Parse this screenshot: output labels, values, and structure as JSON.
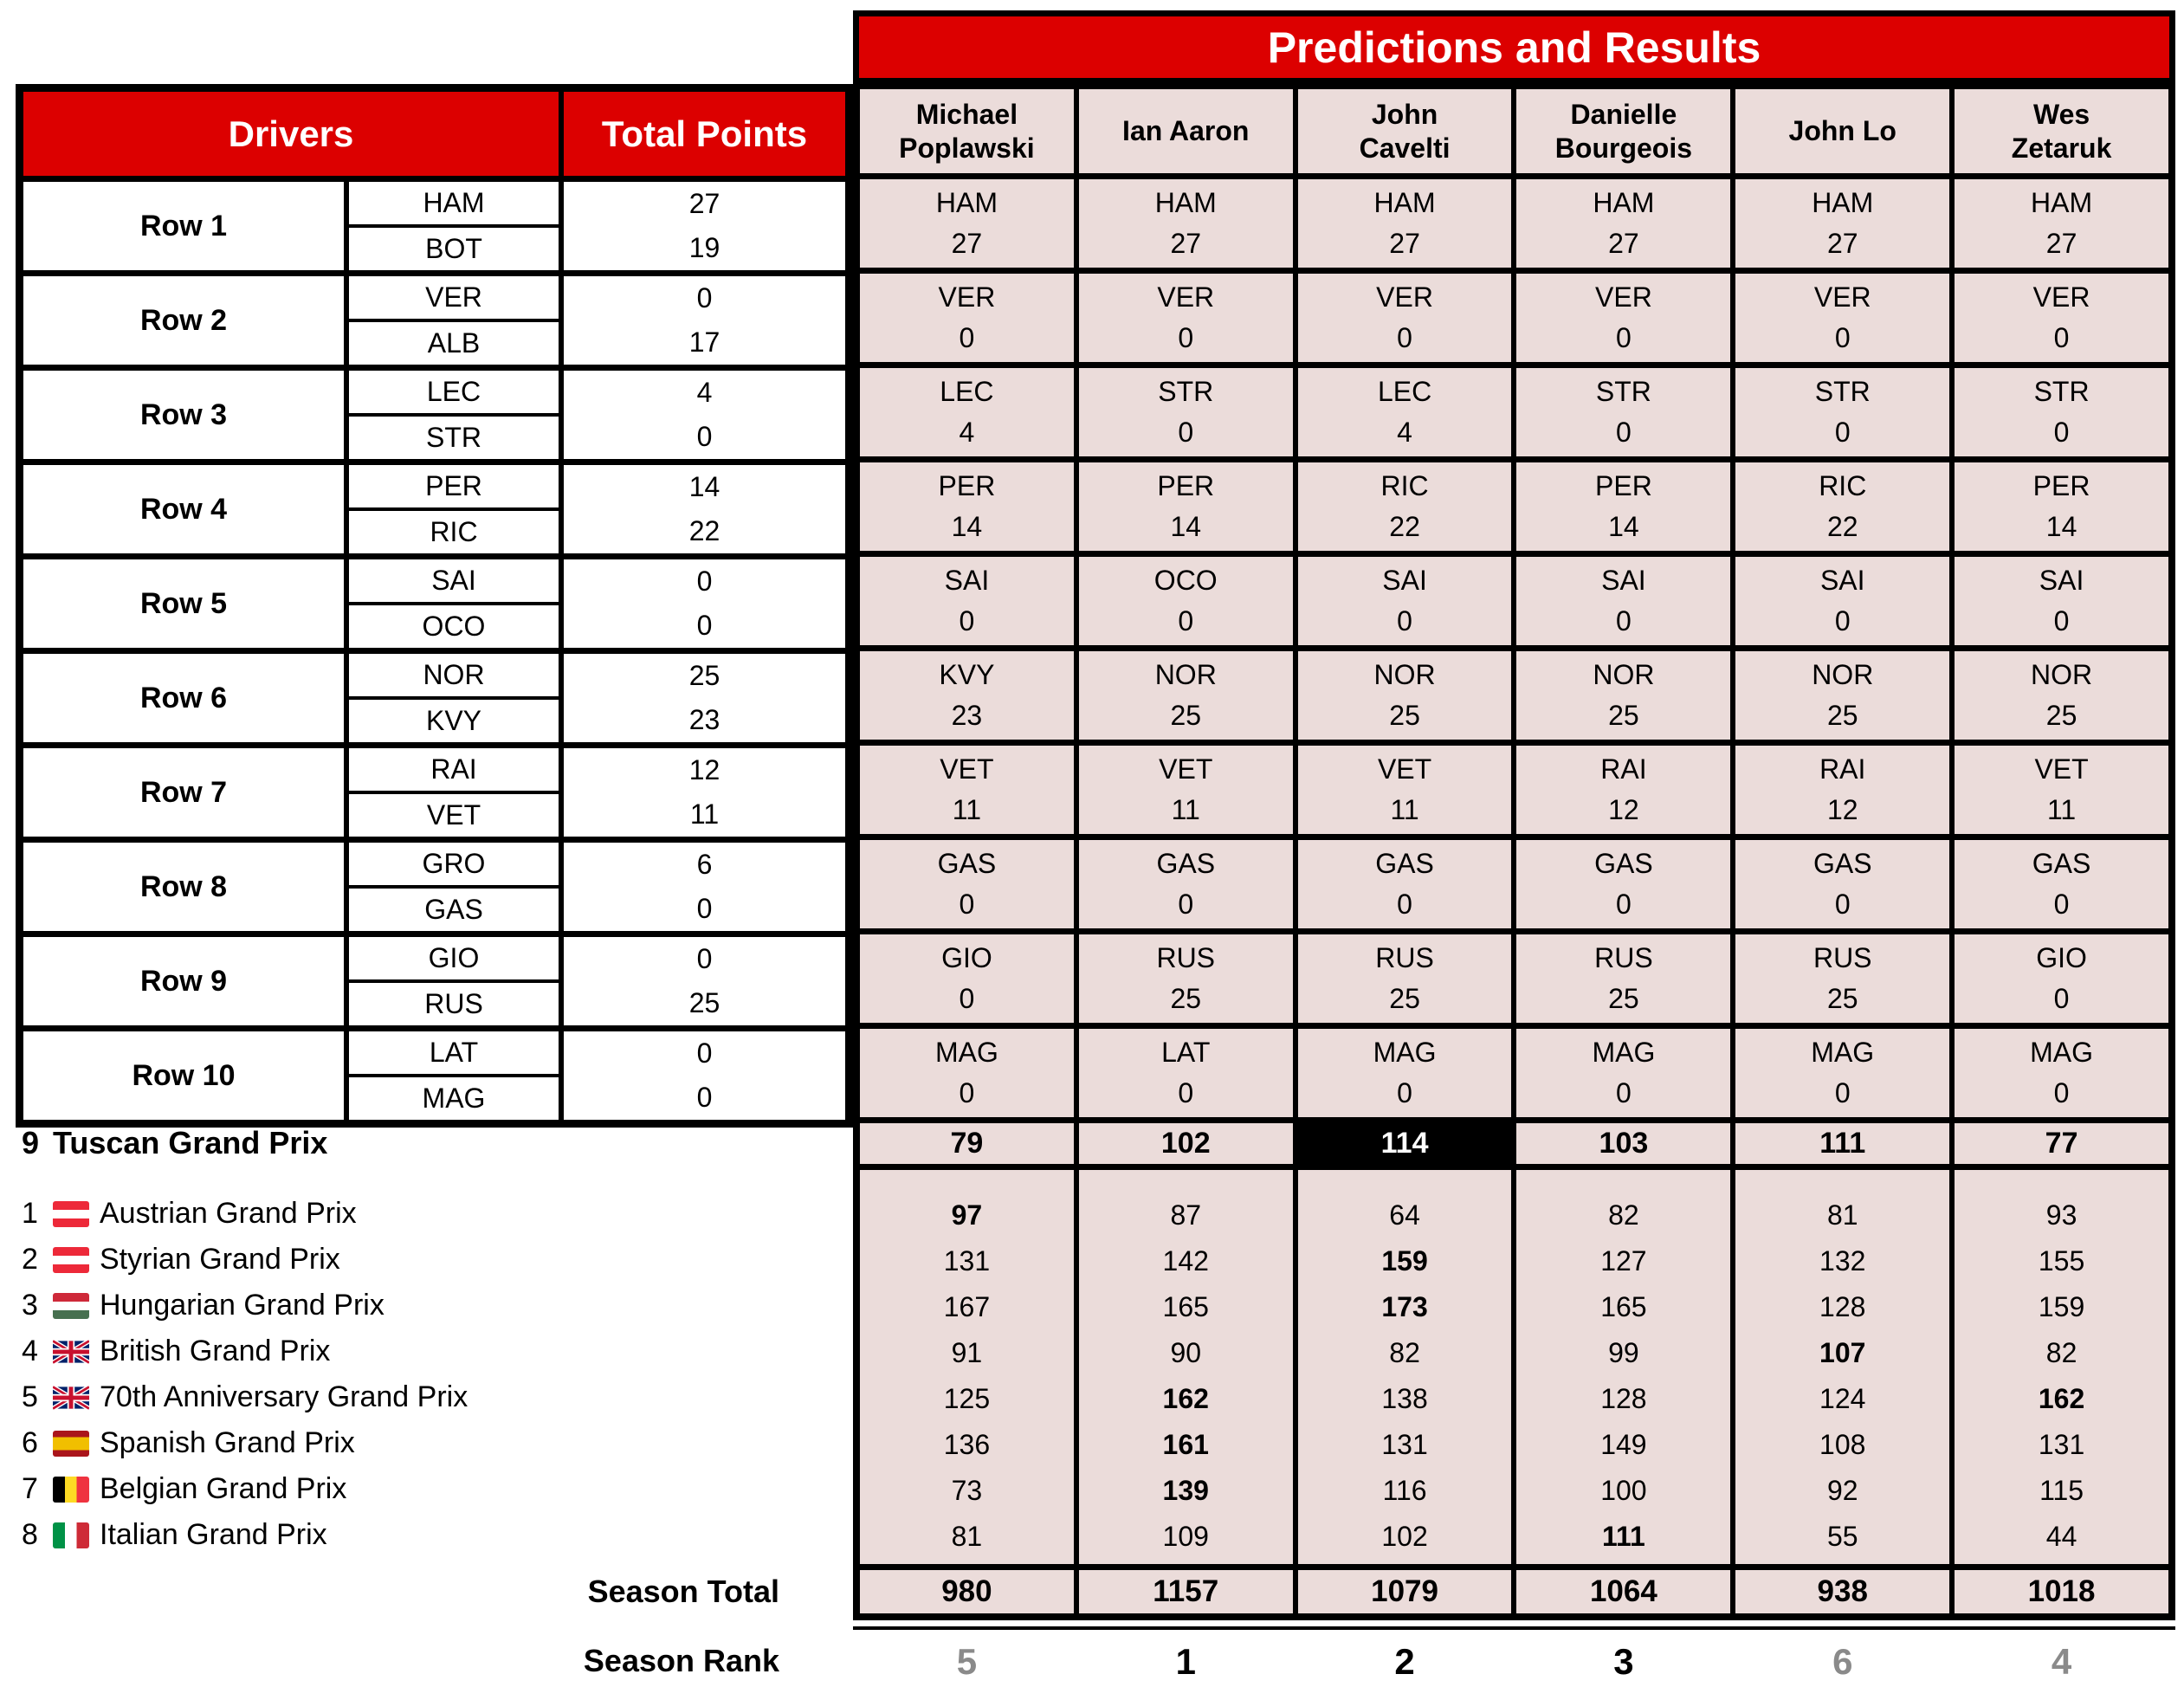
{
  "title": "Predictions and Results",
  "left_table": {
    "drivers_header": "Drivers",
    "total_points_header": "Total Points",
    "rows": [
      {
        "label": "Row 1",
        "drivers": [
          "HAM",
          "BOT"
        ],
        "points": [
          "27",
          "19"
        ]
      },
      {
        "label": "Row 2",
        "drivers": [
          "VER",
          "ALB"
        ],
        "points": [
          "0",
          "17"
        ]
      },
      {
        "label": "Row 3",
        "drivers": [
          "LEC",
          "STR"
        ],
        "points": [
          "4",
          "0"
        ]
      },
      {
        "label": "Row 4",
        "drivers": [
          "PER",
          "RIC"
        ],
        "points": [
          "14",
          "22"
        ]
      },
      {
        "label": "Row 5",
        "drivers": [
          "SAI",
          "OCO"
        ],
        "points": [
          "0",
          "0"
        ]
      },
      {
        "label": "Row 6",
        "drivers": [
          "NOR",
          "KVY"
        ],
        "points": [
          "25",
          "23"
        ]
      },
      {
        "label": "Row 7",
        "drivers": [
          "RAI",
          "VET"
        ],
        "points": [
          "12",
          "11"
        ]
      },
      {
        "label": "Row 8",
        "drivers": [
          "GRO",
          "GAS"
        ],
        "points": [
          "6",
          "0"
        ]
      },
      {
        "label": "Row 9",
        "drivers": [
          "GIO",
          "RUS"
        ],
        "points": [
          "0",
          "25"
        ]
      },
      {
        "label": "Row 10",
        "drivers": [
          "LAT",
          "MAG"
        ],
        "points": [
          "0",
          "0"
        ]
      }
    ]
  },
  "players": [
    "Michael\nPoplawski",
    "Ian Aaron",
    "John\nCavelti",
    "Danielle\nBourgeois",
    "John Lo",
    "Wes\nZetaruk"
  ],
  "predictions": [
    [
      [
        "HAM",
        "27"
      ],
      [
        "HAM",
        "27"
      ],
      [
        "HAM",
        "27"
      ],
      [
        "HAM",
        "27"
      ],
      [
        "HAM",
        "27"
      ],
      [
        "HAM",
        "27"
      ]
    ],
    [
      [
        "VER",
        "0"
      ],
      [
        "VER",
        "0"
      ],
      [
        "VER",
        "0"
      ],
      [
        "VER",
        "0"
      ],
      [
        "VER",
        "0"
      ],
      [
        "VER",
        "0"
      ]
    ],
    [
      [
        "LEC",
        "4"
      ],
      [
        "STR",
        "0"
      ],
      [
        "LEC",
        "4"
      ],
      [
        "STR",
        "0"
      ],
      [
        "STR",
        "0"
      ],
      [
        "STR",
        "0"
      ]
    ],
    [
      [
        "PER",
        "14"
      ],
      [
        "PER",
        "14"
      ],
      [
        "RIC",
        "22"
      ],
      [
        "PER",
        "14"
      ],
      [
        "RIC",
        "22"
      ],
      [
        "PER",
        "14"
      ]
    ],
    [
      [
        "SAI",
        "0"
      ],
      [
        "OCO",
        "0"
      ],
      [
        "SAI",
        "0"
      ],
      [
        "SAI",
        "0"
      ],
      [
        "SAI",
        "0"
      ],
      [
        "SAI",
        "0"
      ]
    ],
    [
      [
        "KVY",
        "23"
      ],
      [
        "NOR",
        "25"
      ],
      [
        "NOR",
        "25"
      ],
      [
        "NOR",
        "25"
      ],
      [
        "NOR",
        "25"
      ],
      [
        "NOR",
        "25"
      ]
    ],
    [
      [
        "VET",
        "11"
      ],
      [
        "VET",
        "11"
      ],
      [
        "VET",
        "11"
      ],
      [
        "RAI",
        "12"
      ],
      [
        "RAI",
        "12"
      ],
      [
        "VET",
        "11"
      ]
    ],
    [
      [
        "GAS",
        "0"
      ],
      [
        "GAS",
        "0"
      ],
      [
        "GAS",
        "0"
      ],
      [
        "GAS",
        "0"
      ],
      [
        "GAS",
        "0"
      ],
      [
        "GAS",
        "0"
      ]
    ],
    [
      [
        "GIO",
        "0"
      ],
      [
        "RUS",
        "25"
      ],
      [
        "RUS",
        "25"
      ],
      [
        "RUS",
        "25"
      ],
      [
        "RUS",
        "25"
      ],
      [
        "GIO",
        "0"
      ]
    ],
    [
      [
        "MAG",
        "0"
      ],
      [
        "LAT",
        "0"
      ],
      [
        "MAG",
        "0"
      ],
      [
        "MAG",
        "0"
      ],
      [
        "MAG",
        "0"
      ],
      [
        "MAG",
        "0"
      ]
    ]
  ],
  "current_race": {
    "number": "9",
    "name": "Tuscan Grand Prix",
    "totals": [
      79,
      102,
      114,
      103,
      111,
      77
    ]
  },
  "past_races": [
    {
      "number": "1",
      "flag": "austria",
      "name": "Austrian Grand Prix",
      "scores": [
        97,
        87,
        64,
        82,
        81,
        93
      ]
    },
    {
      "number": "2",
      "flag": "austria",
      "name": "Styrian Grand Prix",
      "scores": [
        131,
        142,
        159,
        127,
        132,
        155
      ]
    },
    {
      "number": "3",
      "flag": "hungary",
      "name": "Hungarian Grand Prix",
      "scores": [
        167,
        165,
        173,
        165,
        128,
        159
      ]
    },
    {
      "number": "4",
      "flag": "uk",
      "name": "British Grand Prix",
      "scores": [
        91,
        90,
        82,
        99,
        107,
        82
      ]
    },
    {
      "number": "5",
      "flag": "uk",
      "name": "70th Anniversary Grand Prix",
      "scores": [
        125,
        162,
        138,
        128,
        124,
        162
      ]
    },
    {
      "number": "6",
      "flag": "spain",
      "name": "Spanish Grand Prix",
      "scores": [
        136,
        161,
        131,
        149,
        108,
        131
      ]
    },
    {
      "number": "7",
      "flag": "belgium",
      "name": "Belgian Grand Prix",
      "scores": [
        73,
        139,
        116,
        100,
        92,
        115
      ]
    },
    {
      "number": "8",
      "flag": "italy",
      "name": "Italian Grand Prix",
      "scores": [
        81,
        109,
        102,
        111,
        55,
        44
      ]
    }
  ],
  "season_total": {
    "label": "Season Total",
    "values": [
      980,
      1157,
      1079,
      1064,
      938,
      1018
    ]
  },
  "season_rank": {
    "label": "Season Rank",
    "values": [
      5,
      1,
      2,
      3,
      6,
      4
    ]
  },
  "colors": {
    "accent_red": "#dc0000",
    "cell_pink": "#ebdcda",
    "highlight_black": "#000000",
    "rank_top3": "#000000",
    "rank_other": "#8a8a8a"
  }
}
